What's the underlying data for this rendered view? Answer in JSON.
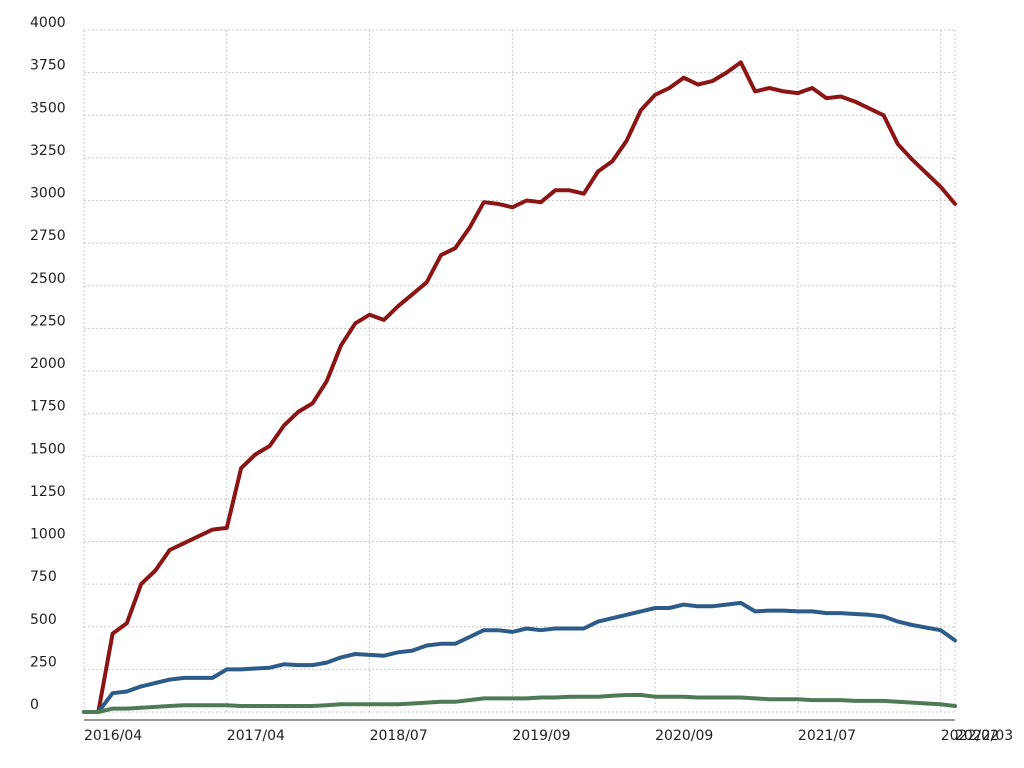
{
  "chart_data": {
    "type": "line",
    "categories": [
      "2016/04",
      null,
      null,
      null,
      null,
      null,
      null,
      null,
      null,
      null,
      "2017/04",
      null,
      null,
      null,
      null,
      null,
      null,
      null,
      null,
      null,
      "2018/07",
      null,
      null,
      null,
      null,
      null,
      null,
      null,
      null,
      null,
      "2019/09",
      null,
      null,
      null,
      null,
      null,
      null,
      null,
      null,
      null,
      "2020/09",
      null,
      null,
      null,
      null,
      null,
      null,
      null,
      null,
      null,
      "2021/07",
      null,
      null,
      null,
      null,
      null,
      null,
      null,
      null,
      null,
      "2022/02",
      "2022/03"
    ],
    "series": [
      {
        "color": "#8b1414",
        "values": [
          0,
          0,
          460,
          520,
          750,
          830,
          950,
          990,
          1030,
          1070,
          1080,
          1430,
          1510,
          1560,
          1680,
          1760,
          1810,
          1940,
          2150,
          2280,
          2330,
          2300,
          2380,
          2450,
          2520,
          2680,
          2720,
          2840,
          2990,
          2980,
          2960,
          3000,
          2990,
          3060,
          3060,
          3040,
          3170,
          3230,
          3350,
          3530,
          3620,
          3660,
          3720,
          3680,
          3700,
          3750,
          3810,
          3640,
          3660,
          3640,
          3630,
          3660,
          3600,
          3610,
          3580,
          3540,
          3500,
          3330,
          3240,
          3160,
          3080,
          2980
        ]
      },
      {
        "color": "#2d5b8a",
        "values": [
          0,
          0,
          110,
          120,
          150,
          170,
          190,
          200,
          200,
          200,
          250,
          250,
          255,
          260,
          280,
          275,
          275,
          290,
          320,
          340,
          335,
          330,
          350,
          360,
          390,
          400,
          400,
          440,
          480,
          480,
          470,
          490,
          480,
          490,
          490,
          490,
          530,
          550,
          570,
          590,
          610,
          610,
          630,
          620,
          620,
          630,
          640,
          590,
          595,
          595,
          590,
          590,
          580,
          580,
          575,
          570,
          560,
          530,
          510,
          495,
          480,
          420
        ]
      },
      {
        "color": "#4e7a56",
        "values": [
          0,
          0,
          20,
          20,
          25,
          30,
          35,
          40,
          40,
          40,
          40,
          35,
          35,
          35,
          35,
          35,
          35,
          40,
          45,
          45,
          45,
          45,
          45,
          50,
          55,
          60,
          60,
          70,
          80,
          80,
          80,
          80,
          85,
          85,
          90,
          90,
          90,
          95,
          100,
          100,
          90,
          90,
          90,
          85,
          85,
          85,
          85,
          80,
          75,
          75,
          75,
          70,
          70,
          70,
          65,
          65,
          65,
          60,
          55,
          50,
          45,
          35
        ]
      }
    ],
    "ylim": [
      0,
      4000
    ],
    "yticks": [
      0,
      250,
      500,
      750,
      1000,
      1250,
      1500,
      1750,
      2000,
      2250,
      2500,
      2750,
      3000,
      3250,
      3500,
      3750,
      4000
    ],
    "grid": true
  }
}
